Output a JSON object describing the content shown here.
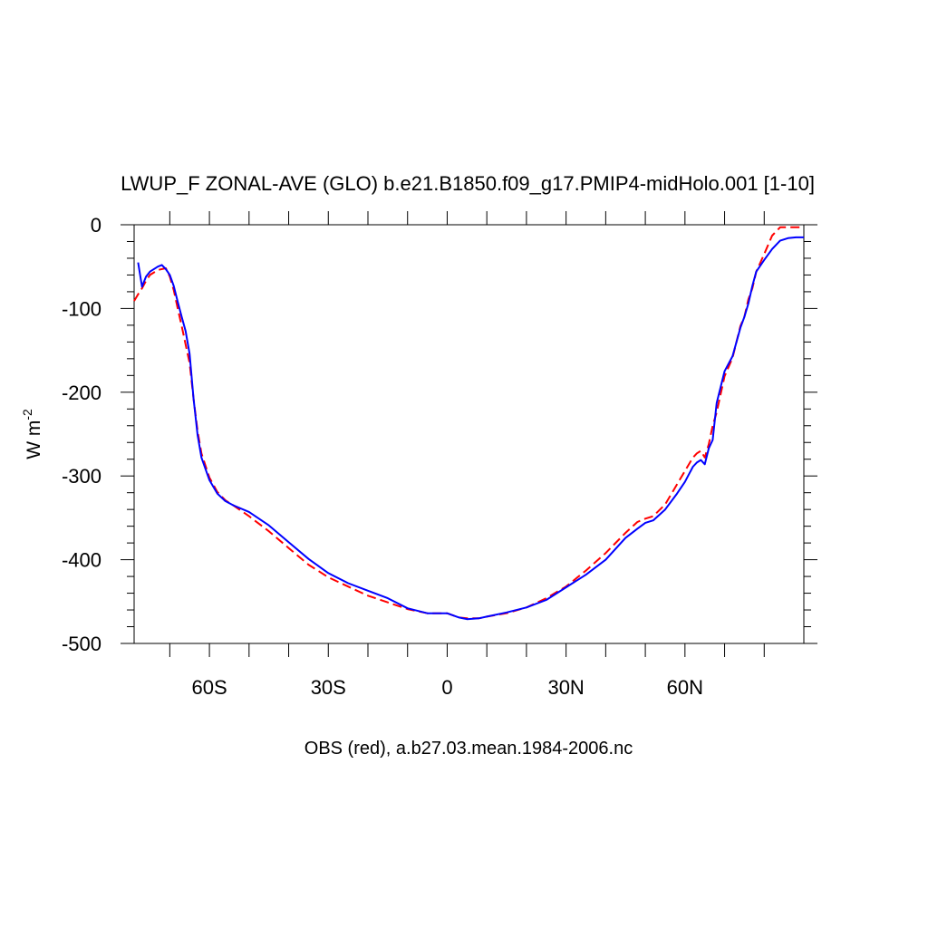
{
  "chart_data": {
    "type": "line",
    "title": "LWUP_F ZONAL-AVE (GLO) b.e21.B1850.f09_g17.PMIP4-midHolo.001 [1-10]",
    "ylabel": {
      "text": "W m",
      "superscript": "-2"
    },
    "xlabel": "OBS (red), a.b27.03.mean.1984-2006.nc",
    "xlim": [
      -79,
      90
    ],
    "ylim": [
      -500,
      0
    ],
    "xticks": [
      {
        "value": -60,
        "label": "60S"
      },
      {
        "value": -30,
        "label": "30S"
      },
      0,
      {
        "value": 30,
        "label": "30N"
      },
      {
        "value": 60,
        "label": "60N"
      }
    ],
    "xminorticks": [
      -70,
      -50,
      -40,
      -20,
      -10,
      10,
      20,
      40,
      50,
      70,
      80
    ],
    "yticks": [
      0,
      -100,
      -200,
      -300,
      -400,
      -500
    ],
    "yminorticks": [
      -20,
      -40,
      -60,
      -80,
      -120,
      -140,
      -160,
      -180,
      -220,
      -240,
      -260,
      -280,
      -320,
      -340,
      -360,
      -380,
      -420,
      -440,
      -460,
      -480
    ],
    "series": [
      {
        "color": "#ff0000",
        "dashed": true,
        "x": [
          -79,
          -78,
          -77,
          -76,
          -75,
          -73,
          -71,
          -70,
          -69,
          -68,
          -67,
          -66,
          -65,
          -64,
          -63,
          -62,
          -60,
          -58,
          -56,
          -54,
          -50,
          -45,
          -40,
          -35,
          -30,
          -25,
          -20,
          -15,
          -10,
          -5,
          0,
          3,
          5,
          8,
          10,
          15,
          20,
          25,
          30,
          35,
          40,
          45,
          48,
          50,
          52,
          55,
          58,
          60,
          62,
          63,
          64,
          65,
          66,
          67,
          68,
          70,
          72,
          74,
          75,
          76,
          77,
          78,
          80,
          82,
          84,
          86,
          88,
          90
        ],
        "values": [
          -91,
          -83,
          -76,
          -67,
          -60,
          -54,
          -52,
          -62,
          -78,
          -100,
          -121,
          -143,
          -165,
          -208,
          -246,
          -273,
          -302,
          -319,
          -329,
          -335,
          -348,
          -366,
          -386,
          -406,
          -421,
          -432,
          -443,
          -451,
          -459,
          -464,
          -464,
          -469,
          -470,
          -470,
          -468,
          -464,
          -457,
          -446,
          -432,
          -413,
          -392,
          -368,
          -355,
          -351,
          -348,
          -334,
          -310,
          -294,
          -278,
          -273,
          -270,
          -278,
          -262,
          -240,
          -224,
          -181,
          -159,
          -121,
          -110,
          -89,
          -76,
          -56,
          -35,
          -13,
          -3,
          -3,
          -3,
          -3
        ]
      },
      {
        "color": "#0000ff",
        "dashed": false,
        "x": [
          -78,
          -77,
          -76,
          -75,
          -73,
          -72,
          -71,
          -70,
          -69,
          -68,
          -67,
          -66,
          -65,
          -64,
          -63,
          -62,
          -60,
          -58,
          -56,
          -54,
          -50,
          -45,
          -40,
          -35,
          -30,
          -25,
          -20,
          -15,
          -10,
          -5,
          -2,
          0,
          3,
          5,
          8,
          10,
          15,
          20,
          25,
          30,
          35,
          40,
          45,
          48,
          50,
          52,
          55,
          58,
          60,
          62,
          63,
          64,
          65,
          66,
          67,
          68,
          70,
          72,
          74,
          75,
          76,
          77,
          78,
          80,
          82,
          84,
          86,
          88,
          90
        ],
        "values": [
          -45,
          -74,
          -62,
          -56,
          -50,
          -48,
          -53,
          -60,
          -73,
          -92,
          -110,
          -127,
          -154,
          -208,
          -251,
          -278,
          -305,
          -321,
          -330,
          -335,
          -343,
          -359,
          -379,
          -399,
          -416,
          -428,
          -437,
          -446,
          -458,
          -464,
          -464,
          -464,
          -469,
          -471,
          -470,
          -468,
          -463,
          -457,
          -448,
          -433,
          -418,
          -400,
          -374,
          -363,
          -356,
          -353,
          -340,
          -321,
          -307,
          -289,
          -284,
          -281,
          -286,
          -267,
          -257,
          -213,
          -175,
          -157,
          -123,
          -110,
          -94,
          -73,
          -56,
          -42,
          -29,
          -19,
          -16,
          -15,
          -15
        ]
      }
    ]
  }
}
